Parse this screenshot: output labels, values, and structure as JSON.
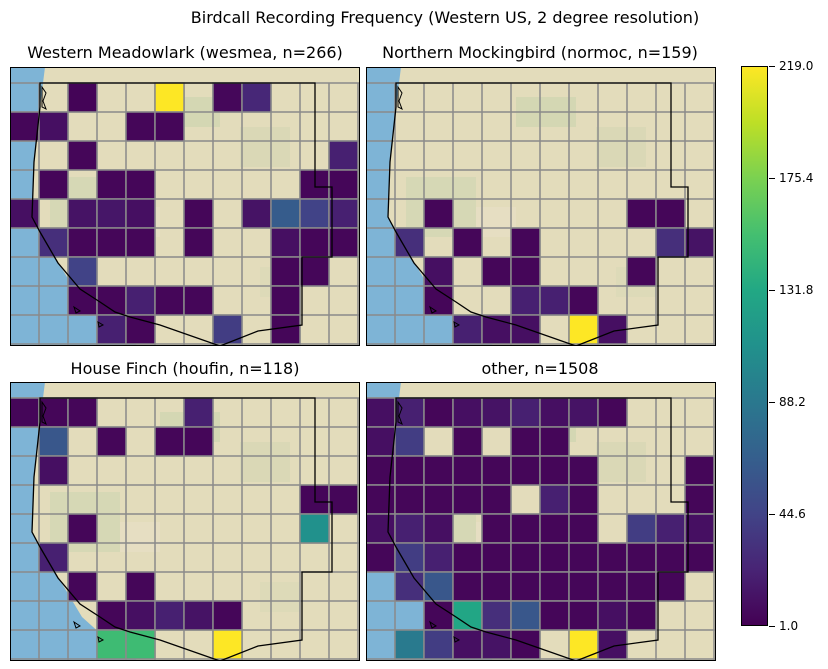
{
  "title": "Birdcall Recording Frequency (Western US, 2 degree resolution)",
  "colorbar": {
    "colormap": "viridis",
    "ticks": [
      "1.0",
      "44.6",
      "88.2",
      "131.8",
      "175.4",
      "219.0"
    ],
    "vmin": 1.0,
    "vmax": 219.0
  },
  "chart_data": [
    {
      "type": "heatmap",
      "title": "Western Meadowlark (wesmea, n=266)",
      "rows": 10,
      "cols": 12,
      "cells": [
        [
          0,
          2,
          3
        ],
        [
          0,
          5,
          219
        ],
        [
          0,
          7,
          5
        ],
        [
          0,
          8,
          25
        ],
        [
          1,
          0,
          4
        ],
        [
          1,
          1,
          10
        ],
        [
          1,
          4,
          4
        ],
        [
          1,
          5,
          4
        ],
        [
          2,
          2,
          4
        ],
        [
          2,
          11,
          20
        ],
        [
          3,
          1,
          4
        ],
        [
          3,
          3,
          4
        ],
        [
          3,
          4,
          4
        ],
        [
          3,
          10,
          4
        ],
        [
          3,
          11,
          4
        ],
        [
          4,
          0,
          10
        ],
        [
          4,
          2,
          12
        ],
        [
          4,
          3,
          14
        ],
        [
          4,
          4,
          10
        ],
        [
          4,
          6,
          4
        ],
        [
          4,
          8,
          12
        ],
        [
          4,
          9,
          64
        ],
        [
          4,
          10,
          44
        ],
        [
          4,
          11,
          20
        ],
        [
          5,
          1,
          30
        ],
        [
          5,
          2,
          4
        ],
        [
          5,
          3,
          4
        ],
        [
          5,
          4,
          4
        ],
        [
          5,
          6,
          4
        ],
        [
          5,
          9,
          10
        ],
        [
          5,
          10,
          4
        ],
        [
          5,
          11,
          4
        ],
        [
          6,
          2,
          44
        ],
        [
          6,
          9,
          4
        ],
        [
          6,
          10,
          4
        ],
        [
          7,
          2,
          4
        ],
        [
          7,
          3,
          4
        ],
        [
          7,
          4,
          20
        ],
        [
          7,
          5,
          4
        ],
        [
          7,
          6,
          4
        ],
        [
          7,
          9,
          4
        ],
        [
          8,
          3,
          20
        ],
        [
          8,
          4,
          4
        ],
        [
          8,
          7,
          40
        ],
        [
          8,
          9,
          4
        ]
      ]
    },
    {
      "type": "heatmap",
      "title": "Northern Mockingbird (normoc, n=159)",
      "rows": 10,
      "cols": 12,
      "cells": [
        [
          4,
          2,
          4
        ],
        [
          4,
          9,
          4
        ],
        [
          4,
          10,
          4
        ],
        [
          5,
          1,
          30
        ],
        [
          5,
          3,
          4
        ],
        [
          5,
          5,
          4
        ],
        [
          5,
          10,
          30
        ],
        [
          5,
          11,
          12
        ],
        [
          6,
          2,
          10
        ],
        [
          6,
          4,
          4
        ],
        [
          6,
          5,
          4
        ],
        [
          6,
          9,
          4
        ],
        [
          7,
          2,
          4
        ],
        [
          7,
          5,
          20
        ],
        [
          7,
          6,
          20
        ],
        [
          7,
          7,
          4
        ],
        [
          8,
          3,
          20
        ],
        [
          8,
          4,
          10
        ],
        [
          8,
          5,
          10
        ],
        [
          8,
          7,
          219
        ],
        [
          8,
          8,
          10
        ]
      ]
    },
    {
      "type": "heatmap",
      "title": "House Finch (houfin, n=118)",
      "rows": 10,
      "cols": 12,
      "cells": [
        [
          0,
          0,
          4
        ],
        [
          0,
          1,
          4
        ],
        [
          0,
          2,
          4
        ],
        [
          0,
          6,
          20
        ],
        [
          1,
          1,
          60
        ],
        [
          1,
          3,
          4
        ],
        [
          1,
          5,
          4
        ],
        [
          1,
          6,
          4
        ],
        [
          2,
          1,
          10
        ],
        [
          3,
          10,
          4
        ],
        [
          3,
          11,
          4
        ],
        [
          4,
          2,
          4
        ],
        [
          4,
          10,
          110
        ],
        [
          5,
          1,
          20
        ],
        [
          6,
          2,
          4
        ],
        [
          6,
          4,
          4
        ],
        [
          7,
          3,
          4
        ],
        [
          7,
          4,
          10
        ],
        [
          7,
          5,
          20
        ],
        [
          7,
          6,
          12
        ],
        [
          7,
          7,
          4
        ],
        [
          8,
          3,
          150
        ],
        [
          8,
          4,
          150
        ],
        [
          8,
          7,
          219
        ]
      ]
    },
    {
      "type": "heatmap",
      "title": "other, n=1508",
      "rows": 10,
      "cols": 12,
      "cells": [
        [
          0,
          0,
          10
        ],
        [
          0,
          1,
          20
        ],
        [
          0,
          2,
          4
        ],
        [
          0,
          3,
          10
        ],
        [
          0,
          4,
          12
        ],
        [
          0,
          5,
          20
        ],
        [
          0,
          6,
          10
        ],
        [
          0,
          7,
          12
        ],
        [
          0,
          8,
          4
        ],
        [
          1,
          0,
          10
        ],
        [
          1,
          1,
          40
        ],
        [
          1,
          3,
          4
        ],
        [
          1,
          5,
          4
        ],
        [
          1,
          6,
          4
        ],
        [
          2,
          0,
          4
        ],
        [
          2,
          1,
          4
        ],
        [
          2,
          2,
          4
        ],
        [
          2,
          3,
          4
        ],
        [
          2,
          4,
          4
        ],
        [
          2,
          5,
          4
        ],
        [
          2,
          6,
          4
        ],
        [
          2,
          7,
          4
        ],
        [
          2,
          11,
          4
        ],
        [
          3,
          0,
          4
        ],
        [
          3,
          1,
          4
        ],
        [
          3,
          2,
          4
        ],
        [
          3,
          3,
          4
        ],
        [
          3,
          4,
          4
        ],
        [
          3,
          6,
          20
        ],
        [
          3,
          7,
          4
        ],
        [
          3,
          11,
          4
        ],
        [
          4,
          0,
          10
        ],
        [
          4,
          1,
          20
        ],
        [
          4,
          2,
          10
        ],
        [
          4,
          4,
          4
        ],
        [
          4,
          5,
          4
        ],
        [
          4,
          6,
          4
        ],
        [
          4,
          7,
          4
        ],
        [
          4,
          9,
          40
        ],
        [
          4,
          10,
          20
        ],
        [
          4,
          11,
          10
        ],
        [
          5,
          0,
          4
        ],
        [
          5,
          1,
          40
        ],
        [
          5,
          2,
          20
        ],
        [
          5,
          3,
          4
        ],
        [
          5,
          4,
          4
        ],
        [
          5,
          5,
          4
        ],
        [
          5,
          6,
          4
        ],
        [
          5,
          7,
          4
        ],
        [
          5,
          8,
          4
        ],
        [
          5,
          9,
          4
        ],
        [
          5,
          10,
          4
        ],
        [
          5,
          11,
          4
        ],
        [
          6,
          1,
          30
        ],
        [
          6,
          2,
          60
        ],
        [
          6,
          3,
          4
        ],
        [
          6,
          4,
          4
        ],
        [
          6,
          5,
          4
        ],
        [
          6,
          6,
          4
        ],
        [
          6,
          7,
          4
        ],
        [
          6,
          8,
          4
        ],
        [
          6,
          9,
          4
        ],
        [
          6,
          10,
          4
        ],
        [
          7,
          2,
          4
        ],
        [
          7,
          3,
          130
        ],
        [
          7,
          4,
          30
        ],
        [
          7,
          5,
          60
        ],
        [
          7,
          6,
          4
        ],
        [
          7,
          7,
          4
        ],
        [
          7,
          8,
          10
        ],
        [
          7,
          9,
          4
        ],
        [
          8,
          1,
          90
        ],
        [
          8,
          2,
          40
        ],
        [
          8,
          3,
          10
        ],
        [
          8,
          4,
          12
        ],
        [
          8,
          5,
          4
        ],
        [
          8,
          7,
          219
        ],
        [
          8,
          8,
          10
        ]
      ]
    }
  ]
}
